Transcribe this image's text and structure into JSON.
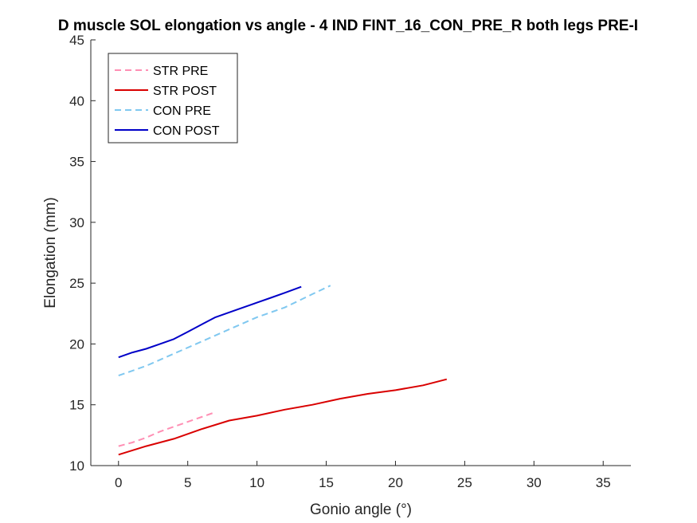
{
  "chart_data": {
    "type": "line",
    "title": "D muscle SOL elongation vs angle - 4 IND FINT_16_CON_PRE_R both legs PRE-I",
    "xlabel": "Gonio angle (°)",
    "ylabel": "Elongation (mm)",
    "xlim": [
      -2,
      37
    ],
    "ylim": [
      10,
      45
    ],
    "xticks": [
      0,
      5,
      10,
      15,
      20,
      25,
      30,
      35
    ],
    "yticks": [
      10,
      15,
      20,
      25,
      30,
      35,
      40,
      45
    ],
    "grid": false,
    "legend_position": "top-left",
    "series": [
      {
        "name": "STR PRE",
        "color": "#ff8fb4",
        "dash": "dashed",
        "x": [
          0,
          1,
          2,
          3,
          4,
          5,
          6,
          7
        ],
        "y": [
          11.6,
          11.9,
          12.3,
          12.8,
          13.2,
          13.6,
          14.0,
          14.4
        ]
      },
      {
        "name": "STR POST",
        "color": "#d90000",
        "dash": "solid",
        "x": [
          0,
          2,
          4,
          6,
          8,
          10,
          12,
          14,
          16,
          18,
          20,
          22,
          23.7
        ],
        "y": [
          10.9,
          11.6,
          12.2,
          13.0,
          13.7,
          14.1,
          14.6,
          15.0,
          15.5,
          15.9,
          16.2,
          16.6,
          17.1
        ]
      },
      {
        "name": "CON PRE",
        "color": "#80c8f0",
        "dash": "dashed",
        "x": [
          0,
          2,
          4,
          6,
          8,
          10,
          12,
          14,
          15.3
        ],
        "y": [
          17.4,
          18.2,
          19.2,
          20.2,
          21.2,
          22.2,
          23.0,
          24.1,
          24.8
        ]
      },
      {
        "name": "CON POST",
        "color": "#0000c8",
        "dash": "solid",
        "x": [
          0,
          1,
          2,
          3,
          4,
          5,
          6,
          7,
          8,
          9,
          10,
          11,
          12,
          13.2
        ],
        "y": [
          18.9,
          19.3,
          19.6,
          20.0,
          20.4,
          21.0,
          21.6,
          22.2,
          22.6,
          23.0,
          23.4,
          23.8,
          24.2,
          24.7
        ]
      }
    ]
  }
}
